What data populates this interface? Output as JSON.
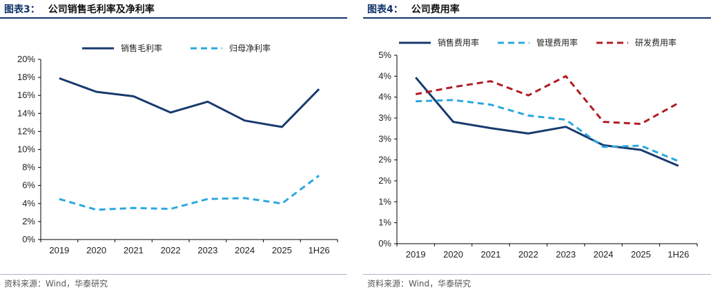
{
  "left": {
    "label": "图表3：",
    "title": "公司销售毛利率及净利率",
    "source": "资料来源：Wind，华泰研究"
  },
  "right": {
    "label": "图表4：",
    "title": "公司费用率",
    "source": "资料来源：Wind，华泰研究"
  },
  "chart_data": [
    {
      "type": "line",
      "categories": [
        "2019",
        "2020",
        "2021",
        "2022",
        "2023",
        "2024",
        "2025",
        "1H26"
      ],
      "y_ticks": [
        "0%",
        "2%",
        "4%",
        "6%",
        "8%",
        "10%",
        "12%",
        "14%",
        "16%",
        "18%",
        "20%"
      ],
      "ylim": [
        0,
        20
      ],
      "grid": false,
      "legend_position": "top",
      "series": [
        {
          "name": "销售毛利率",
          "style": "solid",
          "color": "#173a6e",
          "values": [
            17.9,
            16.4,
            15.9,
            14.1,
            15.3,
            13.2,
            12.5,
            16.7
          ]
        },
        {
          "name": "归母净利率",
          "style": "dashed",
          "color": "#29a8e0",
          "values": [
            4.5,
            3.3,
            3.5,
            3.4,
            4.5,
            4.6,
            4.0,
            7.1
          ]
        }
      ]
    },
    {
      "type": "line",
      "categories": [
        "2019",
        "2020",
        "2021",
        "2022",
        "2023",
        "2024",
        "2025",
        "1H26"
      ],
      "y_ticks": [
        "0%",
        "1%",
        "1%",
        "2%",
        "2%",
        "3%",
        "3%",
        "4%",
        "4%",
        "5%"
      ],
      "ylim": [
        0,
        4.5
      ],
      "grid": false,
      "legend_position": "top",
      "series": [
        {
          "name": "销售费用率",
          "style": "solid",
          "color": "#173a6e",
          "values": [
            3.97,
            2.91,
            2.76,
            2.63,
            2.79,
            2.35,
            2.24,
            1.86
          ]
        },
        {
          "name": "管理费用率",
          "style": "dashed",
          "color": "#29a8e0",
          "values": [
            3.4,
            3.43,
            3.32,
            3.06,
            2.96,
            2.31,
            2.34,
            1.97
          ]
        },
        {
          "name": "研发费用率",
          "style": "dashed",
          "color": "#b01c22",
          "values": [
            3.57,
            3.74,
            3.88,
            3.54,
            4.0,
            2.91,
            2.86,
            3.36
          ]
        }
      ]
    }
  ]
}
